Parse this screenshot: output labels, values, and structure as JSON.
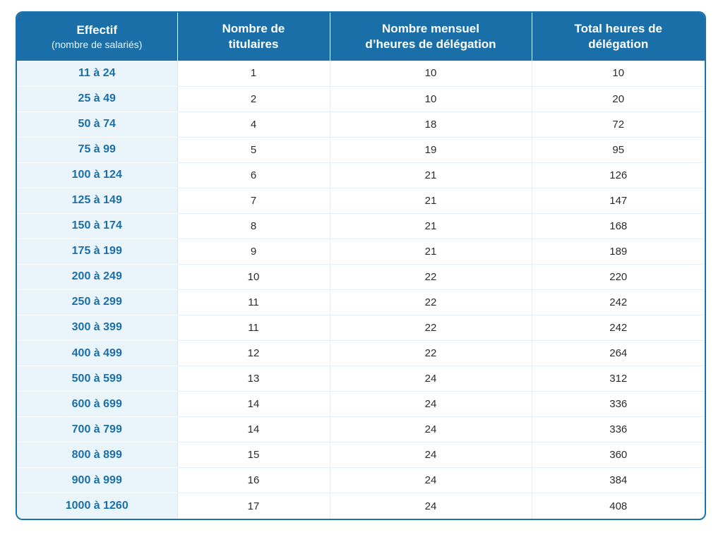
{
  "headers": {
    "col1_title": "Effectif",
    "col1_sub": "(nombre de salariés)",
    "col2_line1": "Nombre de",
    "col2_line2": "titulaires",
    "col3_line1": "Nombre mensuel",
    "col3_line2": "d’heures de délégation",
    "col4_line1": "Total heures de",
    "col4_line2": "délégation"
  },
  "rows": [
    [
      "11 à 24",
      "1",
      "10",
      "10"
    ],
    [
      "25 à 49",
      "2",
      "10",
      "20"
    ],
    [
      "50 à 74",
      "4",
      "18",
      "72"
    ],
    [
      "75 à 99",
      "5",
      "19",
      "95"
    ],
    [
      "100 à 124",
      "6",
      "21",
      "126"
    ],
    [
      "125 à 149",
      "7",
      "21",
      "147"
    ],
    [
      "150 à 174",
      "8",
      "21",
      "168"
    ],
    [
      "175 à 199",
      "9",
      "21",
      "189"
    ],
    [
      "200 à 249",
      "10",
      "22",
      "220"
    ],
    [
      "250 à 299",
      "11",
      "22",
      "242"
    ],
    [
      "300 à 399",
      "11",
      "22",
      "242"
    ],
    [
      "400 à 499",
      "12",
      "22",
      "264"
    ],
    [
      "500 à 599",
      "13",
      "24",
      "312"
    ],
    [
      "600 à 699",
      "14",
      "24",
      "336"
    ],
    [
      "700 à 799",
      "14",
      "24",
      "336"
    ],
    [
      "800 à 899",
      "15",
      "24",
      "360"
    ],
    [
      "900 à 999",
      "16",
      "24",
      "384"
    ],
    [
      "1000 à 1260",
      "17",
      "24",
      "408"
    ]
  ],
  "colors": {
    "header_bg": "#1a6fa8",
    "first_col_bg": "#eaf4fb",
    "first_col_text": "#1a6fa8"
  }
}
